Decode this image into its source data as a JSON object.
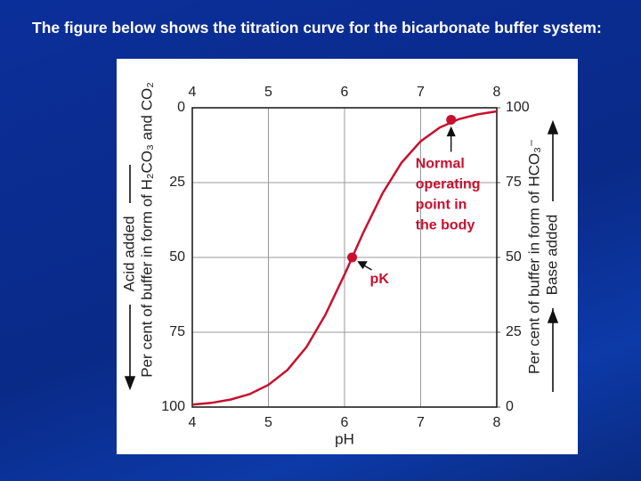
{
  "slide_text": "The figure below shows the titration curve for the bicarbonate buffer system:",
  "chart_data": {
    "type": "line",
    "xlabel": "pH",
    "ylabel": [
      "Acid added",
      "Per cent of buffer in form of H₂CO₃ and CO₂"
    ],
    "y2label": [
      "Per cent of buffer in form of HCO₃⁻",
      "Base added"
    ],
    "x": [
      4,
      4.25,
      4.5,
      4.75,
      5,
      5.25,
      5.5,
      5.75,
      6,
      6.25,
      6.5,
      6.75,
      7,
      7.25,
      7.5,
      7.75,
      8
    ],
    "series": [
      {
        "color": "#c8102e",
        "axis": "y2",
        "values": [
          0.8,
          1.4,
          2.5,
          4.3,
          7.4,
          12.4,
          20.1,
          30.9,
          44.3,
          58.5,
          71.5,
          81.7,
          88.8,
          93.4,
          96.2,
          97.8,
          98.8
        ]
      }
    ],
    "points": [
      {
        "label": [
          "pK"
        ],
        "x": 6.1,
        "y": 50
      },
      {
        "label": [
          "Normal",
          "operating",
          "point in",
          "the body"
        ],
        "x": 7.4,
        "y": 96
      }
    ],
    "xlim": [
      4,
      8
    ],
    "xticks": [
      4,
      5,
      6,
      7,
      8
    ],
    "ylim": [
      100,
      0
    ],
    "yticks": [
      0,
      25,
      50,
      75,
      100
    ],
    "y2lim": [
      0,
      100
    ],
    "y2ticks": [
      0,
      25,
      50,
      75,
      100
    ],
    "grid": true
  }
}
